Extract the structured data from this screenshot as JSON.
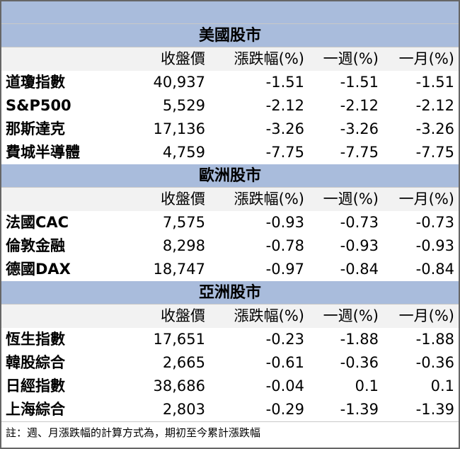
{
  "sections": [
    {
      "title": "美國股市",
      "columns": [
        "收盤價",
        "漲跌幅(%)",
        "一週(%)",
        "一月(%)"
      ],
      "rows": [
        [
          "道瓊指數",
          "40,937",
          "-1.51",
          "-1.51",
          "-1.51"
        ],
        [
          "S&P500",
          "5,529",
          "-2.12",
          "-2.12",
          "-2.12"
        ],
        [
          "那斯達克",
          "17,136",
          "-3.26",
          "-3.26",
          "-3.26"
        ],
        [
          "費城半導體",
          "4,759",
          "-7.75",
          "-7.75",
          "-7.75"
        ]
      ]
    },
    {
      "title": "歐洲股市",
      "columns": [
        "收盤價",
        "漲跌幅(%)",
        "一週(%)",
        "一月(%)"
      ],
      "rows": [
        [
          "法國CAC",
          "7,575",
          "-0.93",
          "-0.73",
          "-0.73"
        ],
        [
          "倫敦金融",
          "8,298",
          "-0.78",
          "-0.93",
          "-0.93"
        ],
        [
          "德國DAX",
          "18,747",
          "-0.97",
          "-0.84",
          "-0.84"
        ]
      ]
    },
    {
      "title": "亞洲股市",
      "columns": [
        "收盤價",
        "漲跌幅(%)",
        "一週(%)",
        "一月(%)"
      ],
      "rows": [
        [
          "恆生指數",
          "17,651",
          "-0.23",
          "-1.88",
          "-1.88"
        ],
        [
          "韓股綜合",
          "2,665",
          "-0.61",
          "-0.36",
          "-0.36"
        ],
        [
          "日經指數",
          "38,686",
          "-0.04",
          "0.1",
          "0.1"
        ],
        [
          "上海綜合",
          "2,803",
          "-0.29",
          "-1.39",
          "-1.39"
        ]
      ]
    }
  ],
  "footer": "註：週、月漲跌幅的計算方式為，期初至今累計漲跌幅"
}
